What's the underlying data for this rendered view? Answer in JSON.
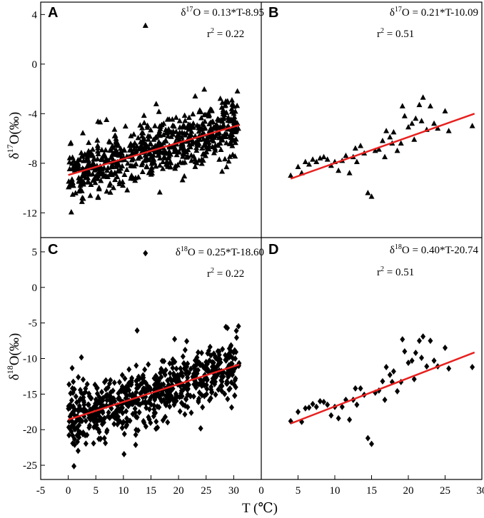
{
  "figure": {
    "xlabel": "T (℃)",
    "ylabel_top": {
      "main": "δ",
      "sup": "17",
      "rest": "O(‰)"
    },
    "ylabel_bottom": {
      "main": "δ",
      "sup": "18",
      "rest": "O(‰)"
    },
    "x_left_ticks": [
      "-5",
      "0",
      "5",
      "10",
      "15",
      "20",
      "25",
      "30"
    ],
    "x_right_ticks": [
      "0",
      "5",
      "10",
      "15",
      "20",
      "25",
      "30"
    ],
    "y_top_ticks": [
      "4",
      "0",
      "-4",
      "-8",
      "-12"
    ],
    "y_bottom_ticks": [
      "5",
      "0",
      "-5",
      "-10",
      "-15",
      "-20",
      "-25"
    ],
    "colors": {
      "points": "#000000",
      "fit_line": "#e8201e",
      "axes": "#000000"
    }
  },
  "chart_data": [
    {
      "panel": "A",
      "type": "scatter",
      "marker": "triangle",
      "xlim": [
        -5,
        35
      ],
      "ylim": [
        -14,
        5
      ],
      "eq": {
        "pre": "δ",
        "sup": "17",
        "post": "O = 0.13*T-8.95"
      },
      "r2": {
        "pre": "r",
        "sup": "2",
        "post": " = 0.22"
      },
      "fit": {
        "slope": 0.13,
        "intercept": -8.95,
        "x_range": [
          0,
          31
        ]
      },
      "outlier": [
        14,
        3.1
      ],
      "cloud": {
        "x_range": [
          0,
          31
        ],
        "scatter_sd": 1.3,
        "count": 700
      }
    },
    {
      "panel": "B",
      "type": "scatter",
      "marker": "triangle",
      "xlim": [
        0,
        30
      ],
      "ylim": [
        -14,
        5
      ],
      "eq": {
        "pre": "δ",
        "sup": "17",
        "post": "O = 0.21*T-10.09"
      },
      "r2": {
        "pre": "r",
        "sup": "2",
        "post": " = 0.51"
      },
      "fit": {
        "slope": 0.21,
        "intercept": -10.09,
        "x_range": [
          4,
          29
        ]
      },
      "points": [
        [
          4,
          -9
        ],
        [
          5,
          -8.3
        ],
        [
          5.5,
          -8.8
        ],
        [
          6,
          -7.9
        ],
        [
          6.5,
          -8.1
        ],
        [
          7,
          -7.7
        ],
        [
          7.5,
          -7.9
        ],
        [
          8,
          -7.6
        ],
        [
          8.5,
          -7.5
        ],
        [
          9,
          -7.7
        ],
        [
          9.5,
          -8.2
        ],
        [
          10,
          -7.9
        ],
        [
          10.5,
          -8.6
        ],
        [
          11,
          -7.8
        ],
        [
          11.5,
          -7.4
        ],
        [
          12,
          -8.8
        ],
        [
          12.5,
          -7.5
        ],
        [
          13,
          -7.9
        ],
        [
          13.5,
          -6.6
        ],
        [
          14,
          -7.2
        ],
        [
          14.5,
          -10.4
        ],
        [
          15,
          -10.7
        ],
        [
          15.5,
          -7
        ],
        [
          16,
          -6.9
        ],
        [
          16.5,
          -6.2
        ],
        [
          17,
          -5.4
        ],
        [
          17.5,
          -5.9
        ],
        [
          18,
          -5.5
        ],
        [
          18.5,
          -7
        ],
        [
          19,
          -6.4
        ],
        [
          19.5,
          -4.2
        ],
        [
          20,
          -5.1
        ],
        [
          20.5,
          -4.8
        ],
        [
          21,
          -4.4
        ],
        [
          21.5,
          -3.3
        ],
        [
          22,
          -2.7
        ],
        [
          22.5,
          -5.3
        ],
        [
          23,
          -3.4
        ],
        [
          23.5,
          -4.8
        ],
        [
          24,
          -5.2
        ],
        [
          25,
          -3.8
        ],
        [
          25.5,
          -5.4
        ],
        [
          28.7,
          -5
        ],
        [
          19.2,
          -3.4
        ],
        [
          16.8,
          -7.5
        ],
        [
          12.8,
          -6.8
        ],
        [
          17.8,
          -6.4
        ],
        [
          20.8,
          -6.1
        ],
        [
          21.8,
          -4.6
        ]
      ]
    },
    {
      "panel": "C",
      "type": "scatter",
      "marker": "diamond",
      "xlim": [
        -5,
        35
      ],
      "ylim": [
        -27,
        7
      ],
      "eq": {
        "pre": "δ",
        "sup": "18",
        "post": "O = 0.25*T-18.60"
      },
      "r2": {
        "pre": "r",
        "sup": "2",
        "post": " = 0.22"
      },
      "fit": {
        "slope": 0.25,
        "intercept": -18.6,
        "x_range": [
          0,
          31
        ]
      },
      "outlier": [
        14,
        4.8
      ],
      "cloud": {
        "x_range": [
          0,
          31
        ],
        "scatter_sd": 2.4,
        "count": 700
      }
    },
    {
      "panel": "D",
      "type": "scatter",
      "marker": "diamond",
      "xlim": [
        0,
        30
      ],
      "ylim": [
        -27,
        7
      ],
      "eq": {
        "pre": "δ",
        "sup": "18",
        "post": "O = 0.40*T-20.74"
      },
      "r2": {
        "pre": "r",
        "sup": "2",
        "post": " = 0.51"
      },
      "fit": {
        "slope": 0.4,
        "intercept": -20.74,
        "x_range": [
          4,
          29
        ]
      },
      "points": [
        [
          4,
          -18.8
        ],
        [
          5,
          -17.5
        ],
        [
          5.5,
          -18.9
        ],
        [
          6,
          -17
        ],
        [
          6.5,
          -16.9
        ],
        [
          7,
          -16.4
        ],
        [
          7.5,
          -16.8
        ],
        [
          8,
          -16
        ],
        [
          8.5,
          -16.1
        ],
        [
          9,
          -16.5
        ],
        [
          9.5,
          -18
        ],
        [
          10,
          -16.8
        ],
        [
          10.5,
          -18.4
        ],
        [
          11,
          -16.8
        ],
        [
          11.5,
          -15.8
        ],
        [
          12,
          -18.6
        ],
        [
          12.5,
          -15.8
        ],
        [
          13,
          -16.5
        ],
        [
          13.5,
          -14.2
        ],
        [
          14,
          -15.1
        ],
        [
          14.5,
          -21.2
        ],
        [
          15,
          -22
        ],
        [
          15.5,
          -14.8
        ],
        [
          16,
          -14.5
        ],
        [
          16.5,
          -13.2
        ],
        [
          17,
          -11.2
        ],
        [
          17.5,
          -12.3
        ],
        [
          18,
          -11.8
        ],
        [
          18.5,
          -14.6
        ],
        [
          19,
          -13.3
        ],
        [
          19.5,
          -9
        ],
        [
          20,
          -10.6
        ],
        [
          20.5,
          -10.3
        ],
        [
          21,
          -9.2
        ],
        [
          21.5,
          -7.5
        ],
        [
          22,
          -6.9
        ],
        [
          22.5,
          -11.1
        ],
        [
          23,
          -7.5
        ],
        [
          23.5,
          -10.3
        ],
        [
          24,
          -11.1
        ],
        [
          25,
          -8.5
        ],
        [
          25.5,
          -11.4
        ],
        [
          28.7,
          -11.2
        ],
        [
          19.2,
          -7.3
        ],
        [
          16.8,
          -15.8
        ],
        [
          12.8,
          -14.2
        ],
        [
          17.8,
          -13.3
        ],
        [
          20.8,
          -12.9
        ],
        [
          21.8,
          -9.9
        ]
      ]
    }
  ]
}
